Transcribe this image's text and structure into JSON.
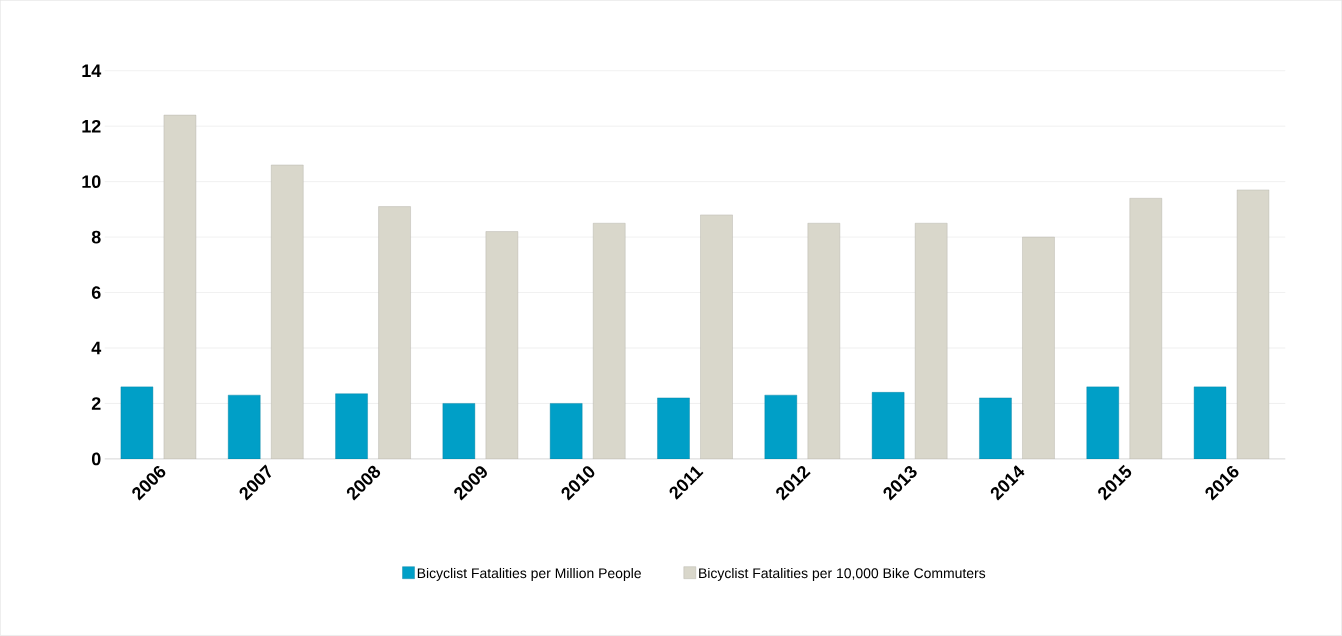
{
  "chart_data": {
    "type": "bar",
    "categories": [
      "2006",
      "2007",
      "2008",
      "2009",
      "2010",
      "2011",
      "2012",
      "2013",
      "2014",
      "2015",
      "2016"
    ],
    "series": [
      {
        "name": "Bicyclist Fatalities per Million People",
        "color": "#009fc7",
        "values": [
          2.6,
          2.3,
          2.35,
          2.0,
          2.0,
          2.2,
          2.3,
          2.4,
          2.2,
          2.6,
          2.6
        ]
      },
      {
        "name": "Bicyclist Fatalities per 10,000 Bike Commuters",
        "color": "#d9d7cb",
        "values": [
          12.4,
          10.6,
          9.1,
          8.2,
          8.5,
          8.8,
          8.5,
          8.5,
          8.0,
          9.4,
          9.7
        ]
      }
    ],
    "ylim": [
      0,
      14
    ],
    "yticks": [
      0,
      2,
      4,
      6,
      8,
      10,
      12,
      14
    ],
    "grid": "y",
    "legend": "bottom"
  }
}
